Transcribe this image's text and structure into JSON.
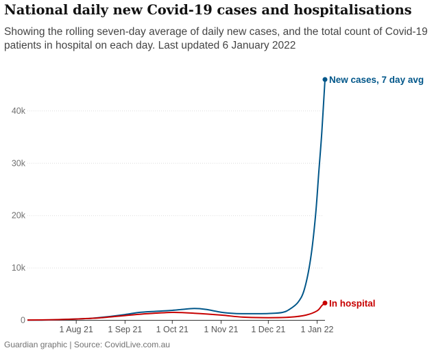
{
  "title": "National daily new Covid-19 cases and hospitalisations",
  "subtitle": "Showing the rolling seven-day average of daily new cases, and the total count of Covid-19 patients in hospital on each day. Last updated 6 January 2022",
  "footer": "Guardian graphic | Source: CovidLive.com.au",
  "chart_data": {
    "type": "line",
    "title": "National daily new Covid-19 cases and hospitalisations",
    "xlabel": "",
    "ylabel": "",
    "xlim": [
      "2021-07-01",
      "2022-01-06"
    ],
    "ylim": [
      0,
      50000
    ],
    "yticks": [
      0,
      10000,
      20000,
      30000,
      40000
    ],
    "ytick_labels": [
      "0",
      "10k",
      "20k",
      "30k",
      "40k"
    ],
    "xticks": [
      "2021-08-01",
      "2021-09-01",
      "2021-10-01",
      "2021-11-01",
      "2021-12-01",
      "2022-01-01"
    ],
    "xtick_labels": [
      "1 Aug 21",
      "1 Sep 21",
      "1 Oct 21",
      "1 Nov 21",
      "1 Dec 21",
      "1 Jan 22"
    ],
    "grid": "horizontal",
    "legend": "direct labels at line ends",
    "series": [
      {
        "name": "New cases, 7 day avg",
        "color": "#005689",
        "points": [
          [
            "2021-07-01",
            20
          ],
          [
            "2021-07-10",
            40
          ],
          [
            "2021-07-20",
            120
          ],
          [
            "2021-08-01",
            250
          ],
          [
            "2021-08-10",
            370
          ],
          [
            "2021-08-20",
            650
          ],
          [
            "2021-09-01",
            1100
          ],
          [
            "2021-09-10",
            1500
          ],
          [
            "2021-09-20",
            1700
          ],
          [
            "2021-10-01",
            1900
          ],
          [
            "2021-10-08",
            2100
          ],
          [
            "2021-10-15",
            2250
          ],
          [
            "2021-10-22",
            2100
          ],
          [
            "2021-11-01",
            1550
          ],
          [
            "2021-11-10",
            1300
          ],
          [
            "2021-11-20",
            1250
          ],
          [
            "2021-12-01",
            1300
          ],
          [
            "2021-12-10",
            1500
          ],
          [
            "2021-12-15",
            2200
          ],
          [
            "2021-12-20",
            3500
          ],
          [
            "2021-12-24",
            6000
          ],
          [
            "2021-12-28",
            12000
          ],
          [
            "2021-12-31",
            20000
          ],
          [
            "2022-01-02",
            28000
          ],
          [
            "2022-01-04",
            36000
          ],
          [
            "2022-01-06",
            46000
          ]
        ],
        "end_label": "New cases, 7 day avg"
      },
      {
        "name": "In hospital",
        "color": "#c70000",
        "points": [
          [
            "2021-07-01",
            50
          ],
          [
            "2021-07-15",
            100
          ],
          [
            "2021-08-01",
            250
          ],
          [
            "2021-08-15",
            450
          ],
          [
            "2021-09-01",
            900
          ],
          [
            "2021-09-15",
            1250
          ],
          [
            "2021-10-01",
            1500
          ],
          [
            "2021-10-15",
            1350
          ],
          [
            "2021-11-01",
            1000
          ],
          [
            "2021-11-15",
            600
          ],
          [
            "2021-12-01",
            500
          ],
          [
            "2021-12-15",
            600
          ],
          [
            "2021-12-25",
            1000
          ],
          [
            "2022-01-01",
            1800
          ],
          [
            "2022-01-04",
            2800
          ],
          [
            "2022-01-06",
            3300
          ]
        ],
        "end_label": "In hospital"
      }
    ]
  }
}
